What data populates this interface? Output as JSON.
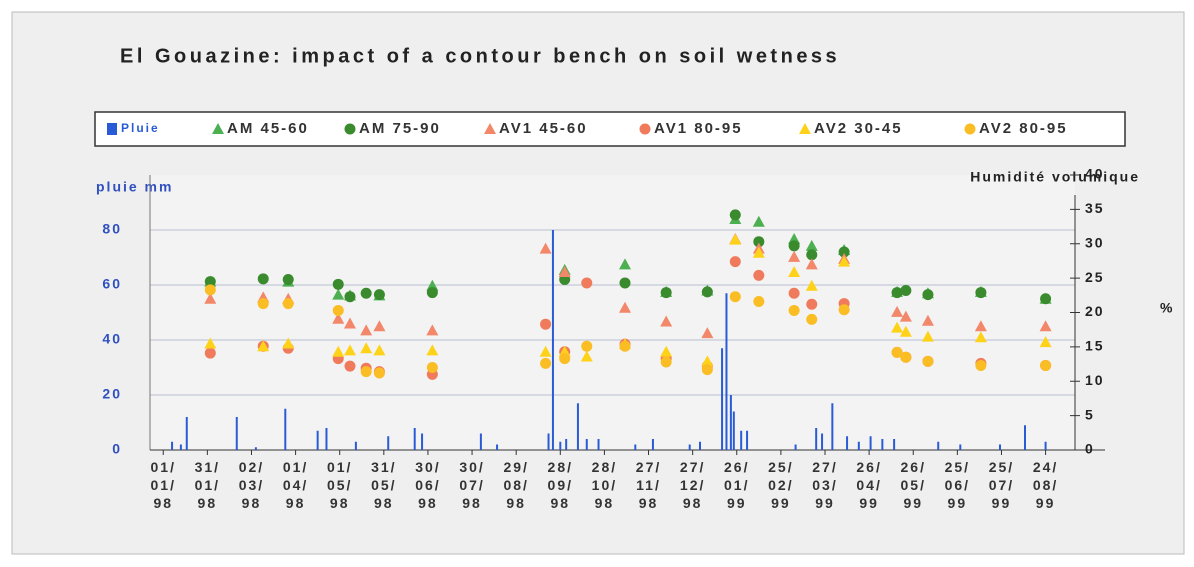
{
  "chart_data": {
    "type": "combo",
    "title": "El Gouazine: impact of a contour bench on soil wetness",
    "ylabel": "pluie mm",
    "y2label": "Humidité volumique",
    "y2unit": "%",
    "xlim": [
      "23/12/97",
      "13/09/99"
    ],
    "xticks": [
      {
        "value": "01/01/98",
        "label": "01/ 01/ 98"
      },
      {
        "value": "31/01/98",
        "label": "31/ 01/ 98"
      },
      {
        "value": "02/03/98",
        "label": "02/ 03/ 98"
      },
      {
        "value": "01/04/98",
        "label": "01/ 04/ 98"
      },
      {
        "value": "01/05/98",
        "label": "01/ 05/ 98"
      },
      {
        "value": "31/05/98",
        "label": "31/ 05/ 98"
      },
      {
        "value": "30/06/98",
        "label": "30/ 06/ 98"
      },
      {
        "value": "30/07/98",
        "label": "30/ 07/ 98"
      },
      {
        "value": "29/08/98",
        "label": "29/ 08/ 98"
      },
      {
        "value": "28/09/98",
        "label": "28/ 09/ 98"
      },
      {
        "value": "28/10/98",
        "label": "28/ 10/ 98"
      },
      {
        "value": "27/11/98",
        "label": "27/ 11/ 98"
      },
      {
        "value": "27/12/98",
        "label": "27/ 12/ 98"
      },
      {
        "value": "26/01/99",
        "label": "26/ 01/ 99"
      },
      {
        "value": "25/02/99",
        "label": "25/ 02/ 99"
      },
      {
        "value": "27/03/99",
        "label": "27/ 03/ 99"
      },
      {
        "value": "26/04/99",
        "label": "26/ 04/ 99"
      },
      {
        "value": "26/05/99",
        "label": "26/ 05/ 99"
      },
      {
        "value": "25/06/99",
        "label": "25/ 06/ 99"
      },
      {
        "value": "25/07/99",
        "label": "25/ 07/ 99"
      },
      {
        "value": "24/08/99",
        "label": "24/ 08/ 99"
      }
    ],
    "ylim": [
      0,
      100
    ],
    "yticks": [
      0,
      20,
      40,
      60,
      80
    ],
    "y2lim": [
      0,
      40
    ],
    "y2ticks": [
      0,
      5,
      10,
      15,
      20,
      25,
      30,
      35,
      40
    ],
    "grid": true,
    "series": [
      {
        "name": "Pluie",
        "type": "bar",
        "color": "#2a5bd7",
        "x": [
          "07/01/98",
          "13/01/98",
          "17/01/98",
          "20/02/98",
          "05/03/98",
          "25/03/98",
          "16/04/98",
          "22/04/98",
          "12/05/98",
          "03/06/98",
          "21/06/98",
          "26/06/98",
          "05/08/98",
          "16/08/98",
          "20/09/98",
          "23/09/98",
          "28/09/98",
          "02/10/98",
          "10/10/98",
          "16/10/98",
          "24/10/98",
          "18/11/98",
          "30/11/98",
          "25/12/98",
          "01/01/99",
          "16/01/99",
          "19/01/99",
          "22/01/99",
          "24/01/99",
          "29/01/99",
          "02/02/99",
          "07/03/99",
          "21/03/99",
          "25/03/99",
          "01/04/99",
          "11/04/99",
          "19/04/99",
          "27/04/99",
          "05/05/99",
          "13/05/99",
          "12/06/99",
          "27/06/99",
          "24/07/99",
          "10/08/99",
          "24/08/99"
        ],
        "values": [
          3,
          2,
          12,
          12,
          1,
          15,
          7,
          8,
          3,
          5,
          8,
          6,
          6,
          2,
          6,
          80,
          3,
          4,
          17,
          4,
          4,
          2,
          4,
          2,
          3,
          37,
          57,
          20,
          14,
          7,
          7,
          2,
          8,
          6,
          17,
          5,
          3,
          5,
          4,
          4,
          3,
          2,
          2,
          9,
          3
        ]
      },
      {
        "name": "AM 45-60",
        "type": "scatter",
        "marker": "triangle",
        "axis": "y2",
        "color": "#4caf50",
        "x": [
          "02/02/98",
          "10/03/98",
          "27/03/98",
          "30/04/98",
          "08/05/98",
          "19/05/98",
          "28/05/98",
          "03/07/98",
          "18/09/98",
          "01/10/98",
          "16/10/98",
          "11/11/98",
          "09/12/98",
          "06/01/99",
          "25/01/99",
          "10/02/99",
          "06/03/99",
          "18/03/99",
          "09/04/99",
          "15/05/99",
          "21/05/99",
          "05/06/99",
          "11/07/99",
          "24/08/99"
        ],
        "values": [
          24.5,
          null,
          24.5,
          22.6,
          22.5,
          null,
          22.5,
          23.9,
          null,
          26.2,
          null,
          27.0,
          23.0,
          23.2,
          33.6,
          33.2,
          30.7,
          29.7,
          29.1,
          23.0,
          null,
          22.8,
          23.0,
          22.0
        ]
      },
      {
        "name": "AM 75-90",
        "type": "scatter",
        "marker": "circle",
        "axis": "y2",
        "color": "#3a8a2e",
        "x": [
          "02/02/98",
          "10/03/98",
          "27/03/98",
          "30/04/98",
          "08/05/98",
          "19/05/98",
          "28/05/98",
          "03/07/98",
          "18/09/98",
          "01/10/98",
          "16/10/98",
          "11/11/98",
          "09/12/98",
          "06/01/99",
          "25/01/99",
          "10/02/99",
          "06/03/99",
          "18/03/99",
          "09/04/99",
          "15/05/99",
          "21/05/99",
          "05/06/99",
          "11/07/99",
          "24/08/99"
        ],
        "values": [
          24.5,
          24.9,
          24.8,
          24.1,
          22.3,
          22.8,
          22.6,
          22.9,
          null,
          24.8,
          null,
          24.3,
          22.9,
          23.0,
          34.2,
          30.3,
          29.7,
          28.4,
          28.8,
          22.9,
          23.2,
          22.6,
          22.9,
          22.0
        ]
      },
      {
        "name": "AV1 45-60",
        "type": "scatter",
        "marker": "triangle",
        "axis": "y2",
        "color": "#f2876a",
        "x": [
          "02/02/98",
          "10/03/98",
          "27/03/98",
          "30/04/98",
          "08/05/98",
          "19/05/98",
          "28/05/98",
          "03/07/98",
          "18/09/98",
          "01/10/98",
          "16/10/98",
          "11/11/98",
          "09/12/98",
          "06/01/99",
          "25/01/99",
          "10/02/99",
          "06/03/99",
          "18/03/99",
          "09/04/99",
          "15/05/99",
          "21/05/99",
          "05/06/99",
          "11/07/99",
          "24/08/99"
        ],
        "values": [
          22.0,
          22.2,
          22.0,
          19.1,
          18.4,
          17.4,
          18.0,
          17.4,
          29.3,
          25.9,
          null,
          20.7,
          18.7,
          17.0,
          30.7,
          29.3,
          28.1,
          27.0,
          27.8,
          20.1,
          19.4,
          18.8,
          18.0,
          18.0
        ]
      },
      {
        "name": "AV1 80-95",
        "type": "scatter",
        "marker": "circle",
        "axis": "y2",
        "color": "#ef7a5c",
        "x": [
          "02/02/98",
          "10/03/98",
          "27/03/98",
          "30/04/98",
          "08/05/98",
          "19/05/98",
          "28/05/98",
          "03/07/98",
          "18/09/98",
          "01/10/98",
          "16/10/98",
          "11/11/98",
          "09/12/98",
          "06/01/99",
          "25/01/99",
          "10/02/99",
          "06/03/99",
          "18/03/99",
          "09/04/99",
          "15/05/99",
          "21/05/99",
          "05/06/99",
          "11/07/99",
          "24/08/99"
        ],
        "values": [
          14.1,
          15.1,
          14.8,
          13.3,
          12.2,
          11.9,
          11.4,
          11.0,
          18.3,
          14.3,
          24.3,
          15.4,
          13.3,
          12.2,
          27.4,
          25.4,
          22.8,
          21.2,
          21.3,
          14.2,
          13.5,
          12.9,
          12.6,
          12.3
        ]
      },
      {
        "name": "AV2 30-45",
        "type": "scatter",
        "marker": "triangle",
        "axis": "y2",
        "color": "#ffd21a",
        "x": [
          "02/02/98",
          "10/03/98",
          "27/03/98",
          "30/04/98",
          "08/05/98",
          "19/05/98",
          "28/05/98",
          "03/07/98",
          "18/09/98",
          "01/10/98",
          "16/10/98",
          "11/11/98",
          "09/12/98",
          "06/01/99",
          "25/01/99",
          "10/02/99",
          "06/03/99",
          "18/03/99",
          "09/04/99",
          "15/05/99",
          "21/05/99",
          "05/06/99",
          "11/07/99",
          "24/08/99"
        ],
        "values": [
          15.5,
          15.1,
          15.5,
          14.3,
          14.5,
          14.8,
          14.5,
          14.5,
          14.3,
          14.3,
          13.6,
          15.4,
          14.3,
          12.9,
          30.6,
          28.7,
          25.9,
          23.9,
          27.4,
          17.8,
          17.2,
          16.5,
          16.4,
          15.7
        ]
      },
      {
        "name": "AV2 80-95",
        "type": "scatter",
        "marker": "circle",
        "axis": "y2",
        "color": "#fbbd24",
        "x": [
          "02/02/98",
          "10/03/98",
          "27/03/98",
          "30/04/98",
          "08/05/98",
          "19/05/98",
          "28/05/98",
          "03/07/98",
          "18/09/98",
          "01/10/98",
          "16/10/98",
          "11/11/98",
          "09/12/98",
          "06/01/99",
          "25/01/99",
          "10/02/99",
          "06/03/99",
          "18/03/99",
          "09/04/99",
          "15/05/99",
          "21/05/99",
          "05/06/99",
          "11/07/99",
          "24/08/99"
        ],
        "values": [
          23.3,
          21.3,
          21.3,
          20.3,
          null,
          11.4,
          11.2,
          12.0,
          12.6,
          13.3,
          15.1,
          15.1,
          12.8,
          11.7,
          22.3,
          21.6,
          20.3,
          19.0,
          20.4,
          14.2,
          13.5,
          12.9,
          12.3,
          12.3
        ]
      }
    ]
  }
}
